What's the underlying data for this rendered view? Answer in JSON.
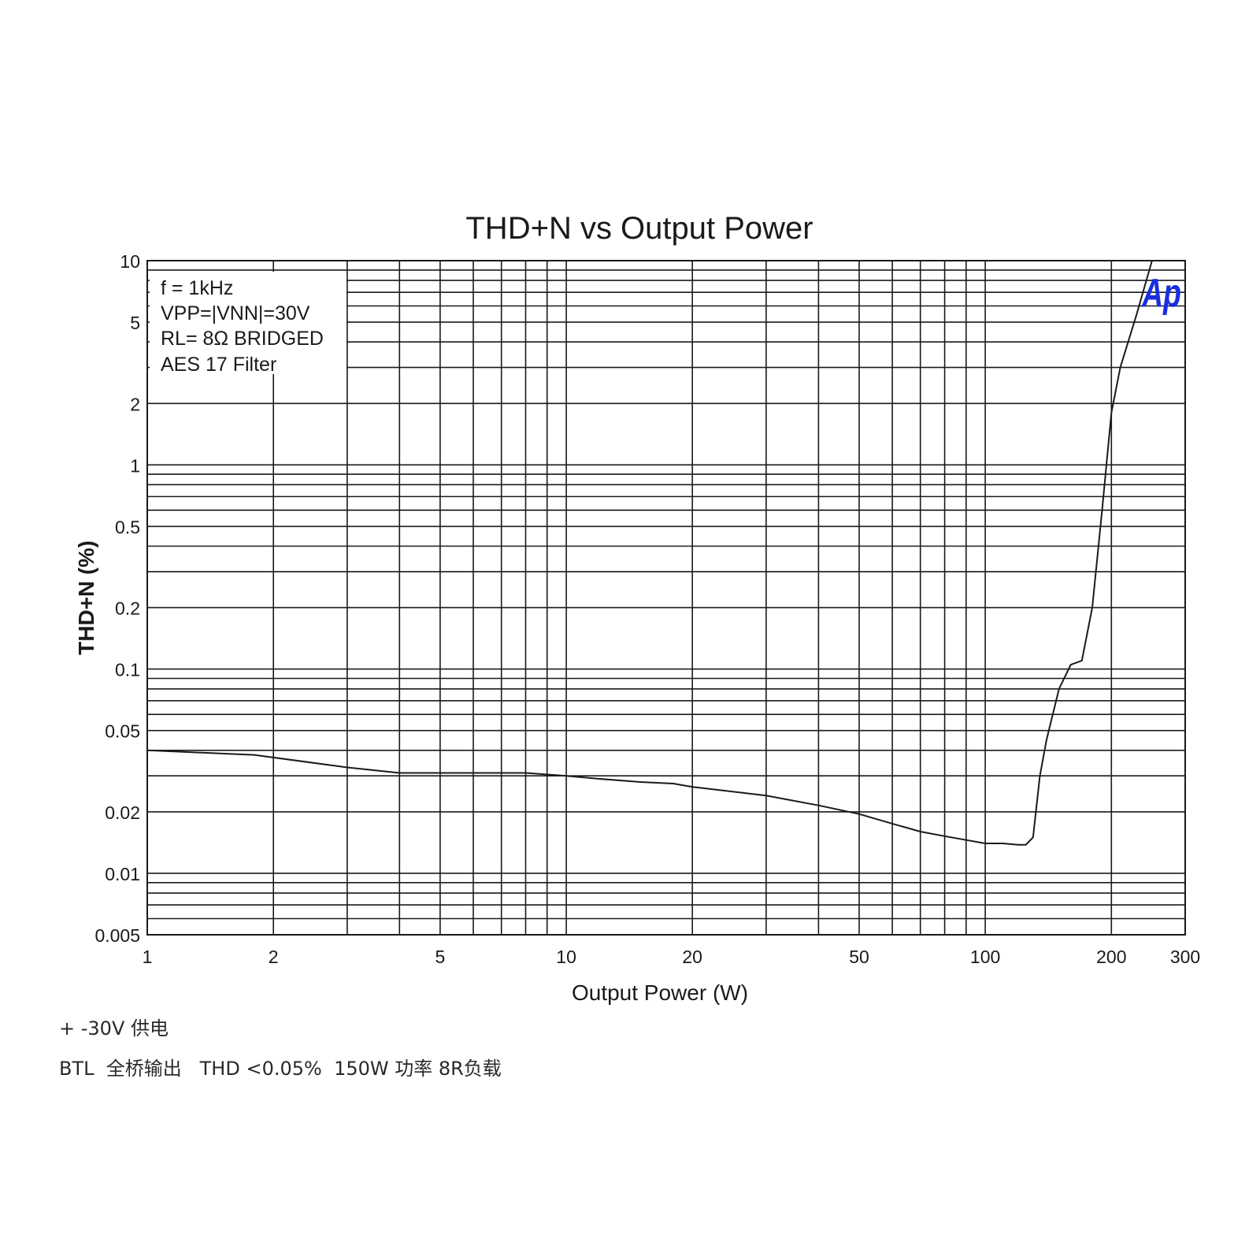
{
  "chart_data": {
    "type": "line",
    "title": "THD+N vs Output Power",
    "xlabel": "Output Power (W)",
    "ylabel": "THD+N (%)",
    "x_scale": "log",
    "y_scale": "log",
    "xlim": [
      1,
      300
    ],
    "ylim": [
      0.005,
      10
    ],
    "grid": true,
    "x_ticks": [
      {
        "value": 1,
        "label": "1"
      },
      {
        "value": 2,
        "label": "2"
      },
      {
        "value": 5,
        "label": "5"
      },
      {
        "value": 10,
        "label": "10"
      },
      {
        "value": 20,
        "label": "20"
      },
      {
        "value": 50,
        "label": "50"
      },
      {
        "value": 100,
        "label": "100"
      },
      {
        "value": 200,
        "label": "200"
      },
      {
        "value": 300,
        "label": "300"
      }
    ],
    "y_ticks": [
      {
        "value": 0.005,
        "label": "0.005"
      },
      {
        "value": 0.01,
        "label": "0.01"
      },
      {
        "value": 0.02,
        "label": "0.02"
      },
      {
        "value": 0.05,
        "label": "0.05"
      },
      {
        "value": 0.1,
        "label": "0.1"
      },
      {
        "value": 0.2,
        "label": "0.2"
      },
      {
        "value": 0.5,
        "label": "0.5"
      },
      {
        "value": 1,
        "label": "1"
      },
      {
        "value": 2,
        "label": "2"
      },
      {
        "value": 5,
        "label": "5"
      },
      {
        "value": 10,
        "label": "10"
      }
    ],
    "annotations": [
      "f = 1kHz",
      "VPP=|VNN|=30V",
      "RL= 8Ω BRIDGED",
      "AES 17 Filter"
    ],
    "logo_text": "Ap",
    "series": [
      {
        "x": [
          1,
          1.8,
          3,
          4,
          5,
          6,
          8,
          10,
          12,
          15,
          18,
          20,
          30,
          40,
          50,
          60,
          70,
          80,
          100,
          110,
          120,
          125,
          130,
          135,
          140,
          150,
          160,
          170,
          180,
          190,
          200,
          210,
          230,
          250
        ],
        "y": [
          0.04,
          0.038,
          0.033,
          0.031,
          0.031,
          0.031,
          0.031,
          0.03,
          0.029,
          0.028,
          0.0275,
          0.0265,
          0.024,
          0.0215,
          0.0195,
          0.0175,
          0.016,
          0.0152,
          0.014,
          0.014,
          0.0138,
          0.0138,
          0.015,
          0.03,
          0.045,
          0.08,
          0.105,
          0.11,
          0.2,
          0.6,
          1.8,
          3,
          5.5,
          10
        ]
      }
    ]
  },
  "colors": {
    "line": "#1a1a1a",
    "grid": "#1a1a1a",
    "logo": "#1a2ee0"
  },
  "captions": {
    "line1": "+ -30V 供电",
    "line2": "BTL  全桥输出   THD <0.05%  150W 功率 8R负载"
  }
}
